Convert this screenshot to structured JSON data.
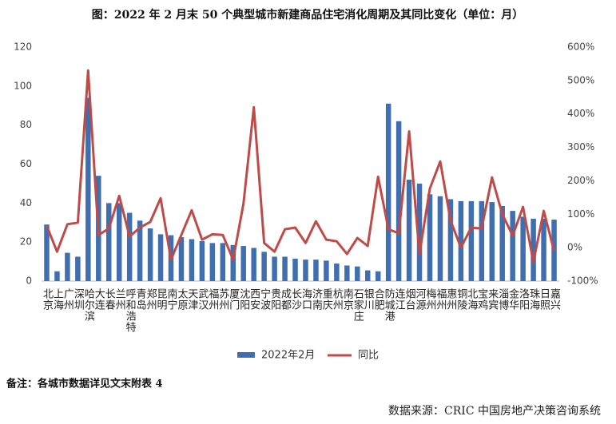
{
  "chart_data": {
    "type": "bar_line",
    "title": "图：2022 年 2 月末 50 个典型城市新建商品住宅消化周期及其同比变化（单位：月）",
    "categories": [
      "北京",
      "上海",
      "广州",
      "深圳",
      "哈尔滨",
      "大连",
      "长春",
      "兰州",
      "呼和浩特",
      "青岛",
      "郑州",
      "昆明",
      "南宁",
      "太原",
      "天津",
      "武汉",
      "福州",
      "苏州",
      "厦门",
      "沈阳",
      "西安",
      "宁波",
      "贵阳",
      "成都",
      "长沙",
      "海口",
      "济南",
      "重庆",
      "杭州",
      "南京",
      "石家庄",
      "银川",
      "合肥",
      "防城港",
      "连江",
      "烟台",
      "河源",
      "梅州",
      "福州",
      "惠州",
      "铜陵",
      "北海",
      "宝鸡",
      "来宾",
      "淄博",
      "金华",
      "洛阳",
      "珠海",
      "日照",
      "嘉兴"
    ],
    "series": [
      {
        "name": "2022年2月",
        "color": "#3f6fb1",
        "type": "bar",
        "values": [
          29,
          5,
          14.5,
          12.5,
          94,
          54,
          40,
          40,
          35,
          31,
          27,
          24,
          23.5,
          22.5,
          21.5,
          20.5,
          19.5,
          19.5,
          18.5,
          18,
          17,
          15,
          12.5,
          12.5,
          11.5,
          11,
          11,
          10.5,
          9,
          8,
          7.5,
          5.5,
          5,
          91,
          82,
          52,
          50,
          44.5,
          43.5,
          42,
          41,
          41,
          41,
          40.5,
          38.5,
          36,
          33,
          32,
          32,
          31.5
        ]
      },
      {
        "name": "同比",
        "color": "#be4b48",
        "type": "line",
        "axis": "y2",
        "values": [
          65,
          -12,
          70,
          75,
          530,
          38,
          57,
          155,
          33,
          60,
          77,
          148,
          -36,
          38,
          112,
          24,
          40,
          38,
          -36,
          131,
          420,
          14,
          -12,
          55,
          60,
          14,
          79,
          24,
          19,
          -19,
          29,
          5,
          212,
          55,
          43,
          348,
          -19,
          177,
          258,
          81,
          0,
          60,
          57,
          210,
          100,
          36,
          122,
          -43,
          110,
          -10
        ]
      }
    ],
    "ylim": [
      0,
      120
    ],
    "yticks": [
      0,
      20,
      40,
      60,
      80,
      100,
      120
    ],
    "y2lim": [
      -100,
      600
    ],
    "y2ticks": [
      {
        "value": -100,
        "label": "-100%"
      },
      {
        "value": 0,
        "label": "0%"
      },
      {
        "value": 100,
        "label": "100%"
      },
      {
        "value": 200,
        "label": "200%"
      },
      {
        "value": 300,
        "label": "300%"
      },
      {
        "value": 400,
        "label": "400%"
      },
      {
        "value": 500,
        "label": "500%"
      },
      {
        "value": 600,
        "label": "600%"
      }
    ],
    "note": "备注：各城市数据详见文末附表 4",
    "source": "数据来源：CRIC 中国房地产决策咨询系统"
  }
}
